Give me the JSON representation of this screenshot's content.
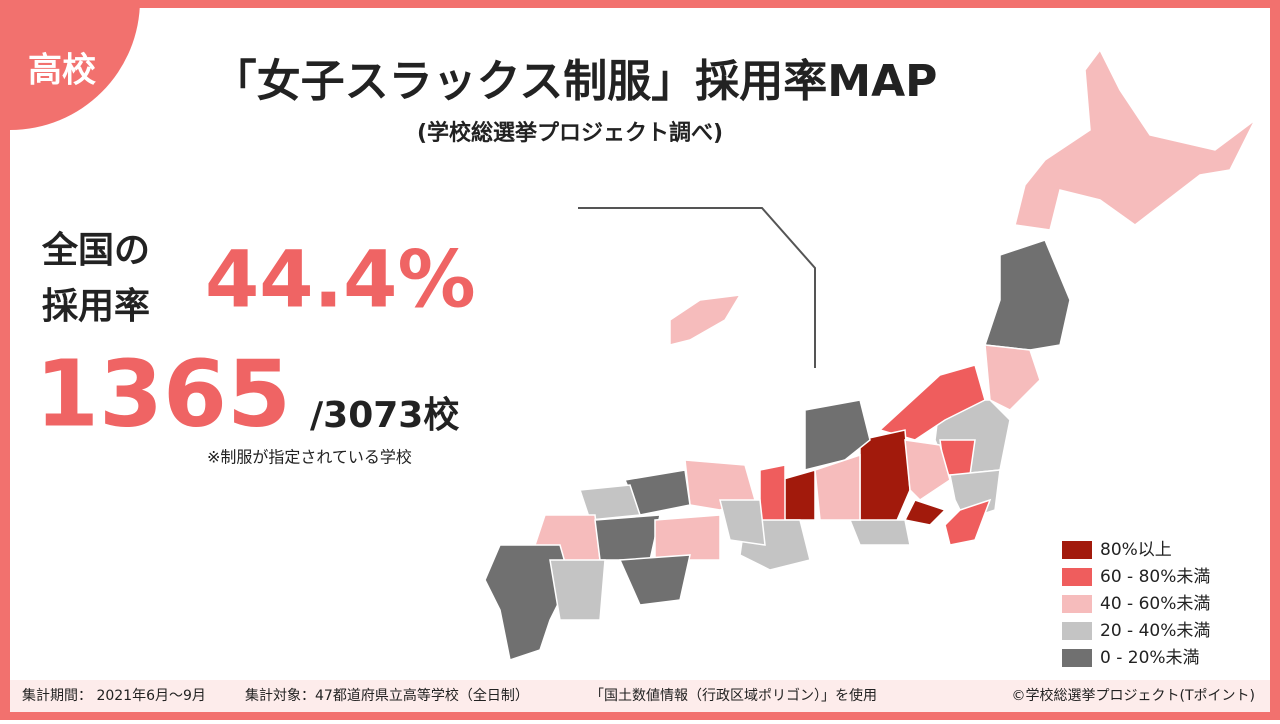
{
  "badge": "高校",
  "header": {
    "title": "「女子スラックス制服」採用率MAP",
    "subtitle": "(学校総選挙プロジェクト調べ)"
  },
  "stats": {
    "label_lines": [
      "全国の",
      "採用率"
    ],
    "rate": "44.4%",
    "count": "1365",
    "total": "/3073校",
    "note": "※制服が指定されている学校"
  },
  "legend": [
    {
      "label": "80%以上",
      "color": "#a21a0c"
    },
    {
      "label": "60 - 80%未満",
      "color": "#ef5d5d"
    },
    {
      "label": "40 - 60%未満",
      "color": "#f6bcbc"
    },
    {
      "label": "20 - 40%未満",
      "color": "#c4c4c4"
    },
    {
      "label": "0 - 20%未満",
      "color": "#707070"
    }
  ],
  "footer": {
    "period": "集計期間： 2021年6月〜9月",
    "target": "集計対象：47都道府県立高等学校（全日制）",
    "source": "「国土数値情報（行政区域ポリゴン）」を使用",
    "credit": "©学校総選挙プロジェクト(Tポイント)"
  }
}
